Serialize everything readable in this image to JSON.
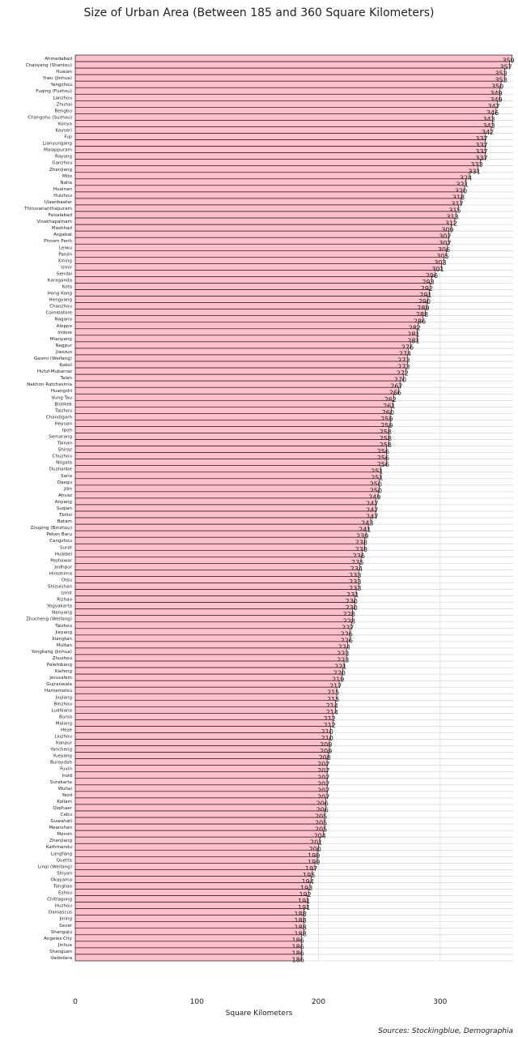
{
  "chart_data": {
    "type": "bar",
    "orientation": "horizontal",
    "title": "Size of Urban Area (Between 185 and 360 Square Kilometers)",
    "xlabel": "Square Kilometers",
    "ylabel": "",
    "xlim": [
      0,
      360
    ],
    "x_ticks": [
      0,
      100,
      200,
      300
    ],
    "grid": true,
    "bar_color": "#ffc0cb",
    "bar_edge_color": "#000000",
    "source": "Sources: Stockingblue, Demographia",
    "categories": [
      "Ahmadabad",
      "Chaoyang (Shantou)",
      "Huaian",
      "Yiwu (Jinhua)",
      "Yangzhou",
      "Fuqing (Fuzhou)",
      "Lanzhou",
      "Zhuhai",
      "Bengbu",
      "Changshu (Suzhou)",
      "Konya",
      "Kayseri",
      "Fuji",
      "Lianyungang",
      "Malappuram",
      "Rayong",
      "Ganzhou",
      "Zhenjiang",
      "Mito",
      "Naha",
      "Huainan",
      "Huizhou",
      "Ulaanbaatar",
      "Thiruvananthapuram",
      "Faisalabad",
      "Visakhapatnam",
      "Mashhad",
      "Asgabat",
      "Phnom Penh",
      "Leiwu",
      "Panjin",
      "Xining",
      "Izmir",
      "Sendai",
      "Karaganda",
      "Kota",
      "Hong Kong",
      "Hengyang",
      "Chaozhou",
      "Coimbatore",
      "Nagano",
      "Aleppo",
      "Indore",
      "Mianyang",
      "Nagpur",
      "Jiaozuo",
      "Gaomi (Weifang)",
      "Kabul",
      "Hufuf-Mubarraz",
      "Taian",
      "Nakhon Ratchasima",
      "Huangshi",
      "Vung Tau",
      "Bishkek",
      "Taizhou",
      "Chandigarh",
      "Heyuan",
      "Ipoh",
      "Semarang",
      "Tainan",
      "Shiraz",
      "Chuzhou",
      "Niigata",
      "Dushanbe",
      "Sana",
      "Daegu",
      "Jilin",
      "Ahvaz",
      "Anyang",
      "Suqian",
      "Tbilisi",
      "Batam",
      "Zouping (Binzhou)",
      "Pekan Baru",
      "Cangzhou",
      "Surat",
      "Huaibei",
      "Peshawar",
      "Jodhpur",
      "Hiroshima",
      "Otsu",
      "Shizuishan",
      "Izmit",
      "Rizhao",
      "Yogyakarta",
      "Nanyang",
      "Zhucheng (Weifang)",
      "Taizhou",
      "Jieyang",
      "Xiangtan",
      "Multan",
      "Yongkang (Jinhua)",
      "Zhuzhou",
      "Palembang",
      "Kaifeng",
      "Jerusalem",
      "Gujranwala",
      "Hamamatsu",
      "Jiujiang",
      "Binzhou",
      "Ludhiana",
      "Bursa",
      "Malang",
      "Heze",
      "Liuzhou",
      "Kanpur",
      "Yancheng",
      "Yueyang",
      "Buraydah",
      "Fuxin",
      "Iroid",
      "Surakarta",
      "Wuhai",
      "Yazd",
      "Kollam",
      "Qiqihaer",
      "Cebu",
      "Guwahati",
      "Meanshan",
      "Mersin",
      "Zhanjiang",
      "Kathmandu",
      "Langfang",
      "Quetta",
      "Linqi (Weifang)",
      "Shiyan",
      "Okayama",
      "Tongliao",
      "Ezhou",
      "Chittagong",
      "Huzhou",
      "Damascus",
      "Jining",
      "Savar",
      "Shangqiu",
      "Angeles City",
      "Jinhua",
      "Shaoguan",
      "Vadodara"
    ],
    "values": [
      359,
      357,
      353,
      353,
      350,
      349,
      349,
      347,
      346,
      343,
      343,
      342,
      337,
      337,
      337,
      337,
      333,
      331,
      324,
      321,
      320,
      318,
      317,
      315,
      313,
      312,
      309,
      307,
      307,
      306,
      305,
      303,
      301,
      296,
      293,
      292,
      291,
      290,
      289,
      288,
      286,
      282,
      281,
      281,
      276,
      274,
      273,
      273,
      272,
      270,
      267,
      266,
      262,
      261,
      260,
      259,
      259,
      258,
      258,
      258,
      256,
      256,
      256,
      251,
      251,
      250,
      250,
      249,
      247,
      247,
      247,
      243,
      241,
      239,
      238,
      238,
      236,
      235,
      234,
      233,
      233,
      233,
      231,
      230,
      230,
      228,
      228,
      227,
      226,
      226,
      224,
      223,
      223,
      221,
      220,
      219,
      217,
      215,
      215,
      214,
      214,
      212,
      212,
      210,
      210,
      209,
      209,
      208,
      207,
      207,
      207,
      207,
      207,
      207,
      206,
      206,
      205,
      205,
      205,
      204,
      201,
      200,
      199,
      199,
      197,
      195,
      194,
      193,
      192,
      191,
      191,
      188,
      188,
      188,
      188,
      186,
      186,
      186,
      186
    ]
  }
}
